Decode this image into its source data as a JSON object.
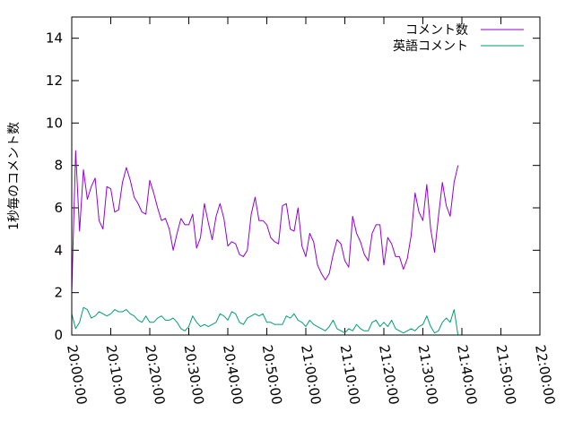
{
  "chart_data": {
    "type": "line",
    "title": "",
    "xlabel": "",
    "ylabel": "1秒毎のコメント数",
    "xlim": [
      "20:00:00",
      "22:00:00"
    ],
    "ylim": [
      0,
      15
    ],
    "x_ticks": [
      "20:00:00",
      "20:10:00",
      "20:20:00",
      "20:30:00",
      "20:40:00",
      "20:50:00",
      "21:00:00",
      "21:10:00",
      "21:20:00",
      "21:30:00",
      "21:40:00",
      "21:50:00",
      "22:00:00"
    ],
    "y_ticks": [
      0,
      2,
      4,
      6,
      8,
      10,
      12,
      14
    ],
    "grid": false,
    "legend": "top-right",
    "x_interval": "1 min",
    "x_start": "20:00:00",
    "series": [
      {
        "name": "コメント数",
        "color": "#9400d3",
        "values": [
          2.0,
          8.7,
          4.9,
          7.8,
          6.4,
          7.0,
          7.4,
          5.4,
          5.0,
          7.0,
          6.9,
          5.8,
          5.9,
          7.2,
          7.9,
          7.3,
          6.5,
          6.2,
          5.8,
          5.7,
          7.3,
          6.7,
          6.0,
          5.4,
          5.5,
          5.0,
          4.0,
          4.8,
          5.5,
          5.2,
          5.2,
          5.7,
          4.1,
          4.6,
          6.2,
          5.3,
          4.5,
          5.6,
          6.2,
          5.5,
          4.2,
          4.4,
          4.3,
          3.8,
          3.7,
          4.0,
          5.7,
          6.5,
          5.4,
          5.4,
          5.2,
          4.6,
          4.4,
          4.3,
          6.1,
          6.2,
          5.0,
          4.9,
          6.0,
          4.2,
          3.7,
          4.8,
          4.4,
          3.3,
          2.9,
          2.6,
          2.9,
          3.8,
          4.5,
          4.3,
          3.5,
          3.2,
          5.6,
          4.8,
          4.4,
          3.8,
          3.5,
          4.8,
          5.2,
          5.2,
          3.3,
          4.6,
          4.3,
          3.7,
          3.7,
          3.1,
          3.6,
          4.7,
          6.7,
          5.8,
          5.4,
          7.1,
          5.0,
          3.9,
          5.6,
          7.2,
          6.1,
          5.6,
          7.2,
          8.0
        ]
      },
      {
        "name": "英語コメント",
        "color": "#009e73",
        "values": [
          1.0,
          0.3,
          0.6,
          1.3,
          1.2,
          0.8,
          0.9,
          1.1,
          1.0,
          0.9,
          1.0,
          1.2,
          1.1,
          1.1,
          1.2,
          1.0,
          0.9,
          0.7,
          0.6,
          0.9,
          0.6,
          0.6,
          0.8,
          0.9,
          0.7,
          0.7,
          0.8,
          0.6,
          0.3,
          0.2,
          0.4,
          0.9,
          0.6,
          0.4,
          0.5,
          0.4,
          0.5,
          0.6,
          1.0,
          0.9,
          0.7,
          1.1,
          1.0,
          0.6,
          0.5,
          0.8,
          0.9,
          1.0,
          0.9,
          1.0,
          0.6,
          0.6,
          0.5,
          0.5,
          0.5,
          0.9,
          0.8,
          1.0,
          0.7,
          0.6,
          0.4,
          0.7,
          0.5,
          0.4,
          0.3,
          0.2,
          0.4,
          0.7,
          0.3,
          0.2,
          0.1,
          0.3,
          0.2,
          0.5,
          0.3,
          0.2,
          0.2,
          0.6,
          0.7,
          0.4,
          0.6,
          0.4,
          0.7,
          0.3,
          0.2,
          0.1,
          0.2,
          0.3,
          0.2,
          0.4,
          0.5,
          0.9,
          0.4,
          0.1,
          0.2,
          0.6,
          0.8,
          0.6,
          1.2,
          0.0
        ]
      }
    ]
  }
}
